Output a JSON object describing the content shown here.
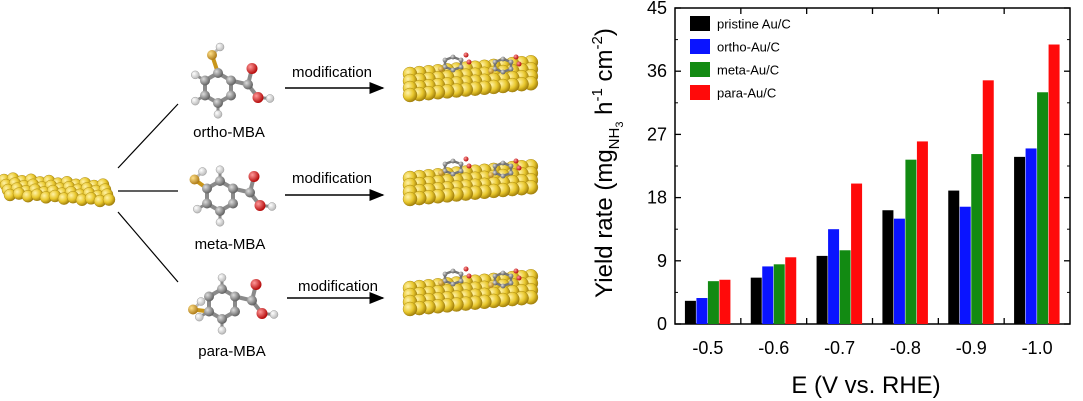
{
  "scheme": {
    "mba_labels": [
      "ortho-MBA",
      "meta-MBA",
      "para-MBA"
    ],
    "arrow_label": "modification",
    "colors": {
      "gold": "#e9c82e",
      "gold_dark": "#b8920e",
      "carbon": "#8a8a8a",
      "oxygen": "#e02020",
      "hydrogen": "#f2f2f2",
      "sulfur": "#d8a11e"
    }
  },
  "chart_data": {
    "type": "bar",
    "categories": [
      "-0.5",
      "-0.6",
      "-0.7",
      "-0.8",
      "-0.9",
      "-1.0"
    ],
    "series": [
      {
        "name": "pristine Au/C",
        "color": "#000000",
        "values": [
          3.3,
          6.6,
          9.7,
          16.2,
          19.0,
          23.8
        ]
      },
      {
        "name": "ortho-Au/C",
        "color": "#0a14ff",
        "values": [
          3.7,
          8.2,
          13.5,
          15.0,
          16.7,
          25.0
        ]
      },
      {
        "name": "meta-Au/C",
        "color": "#128a12",
        "values": [
          6.1,
          8.5,
          10.5,
          23.4,
          24.2,
          33.0
        ]
      },
      {
        "name": "para-Au/C",
        "color": "#ff0a0a",
        "values": [
          6.3,
          9.5,
          20.0,
          26.0,
          34.7,
          39.8
        ]
      }
    ],
    "ylim": [
      0,
      45
    ],
    "yticks": [
      "0",
      "9",
      "18",
      "27",
      "36",
      "45"
    ],
    "xlabel": "E (V vs.  RHE)",
    "ylabel": {
      "main": "Yield rate (mg",
      "sub": "NH",
      "sub2": "3",
      "mid": " h",
      "sup1": "-1",
      "mid2": " cm",
      "sup2": "-2",
      "end": ")"
    },
    "legend_position": "top-left",
    "grid": false
  }
}
